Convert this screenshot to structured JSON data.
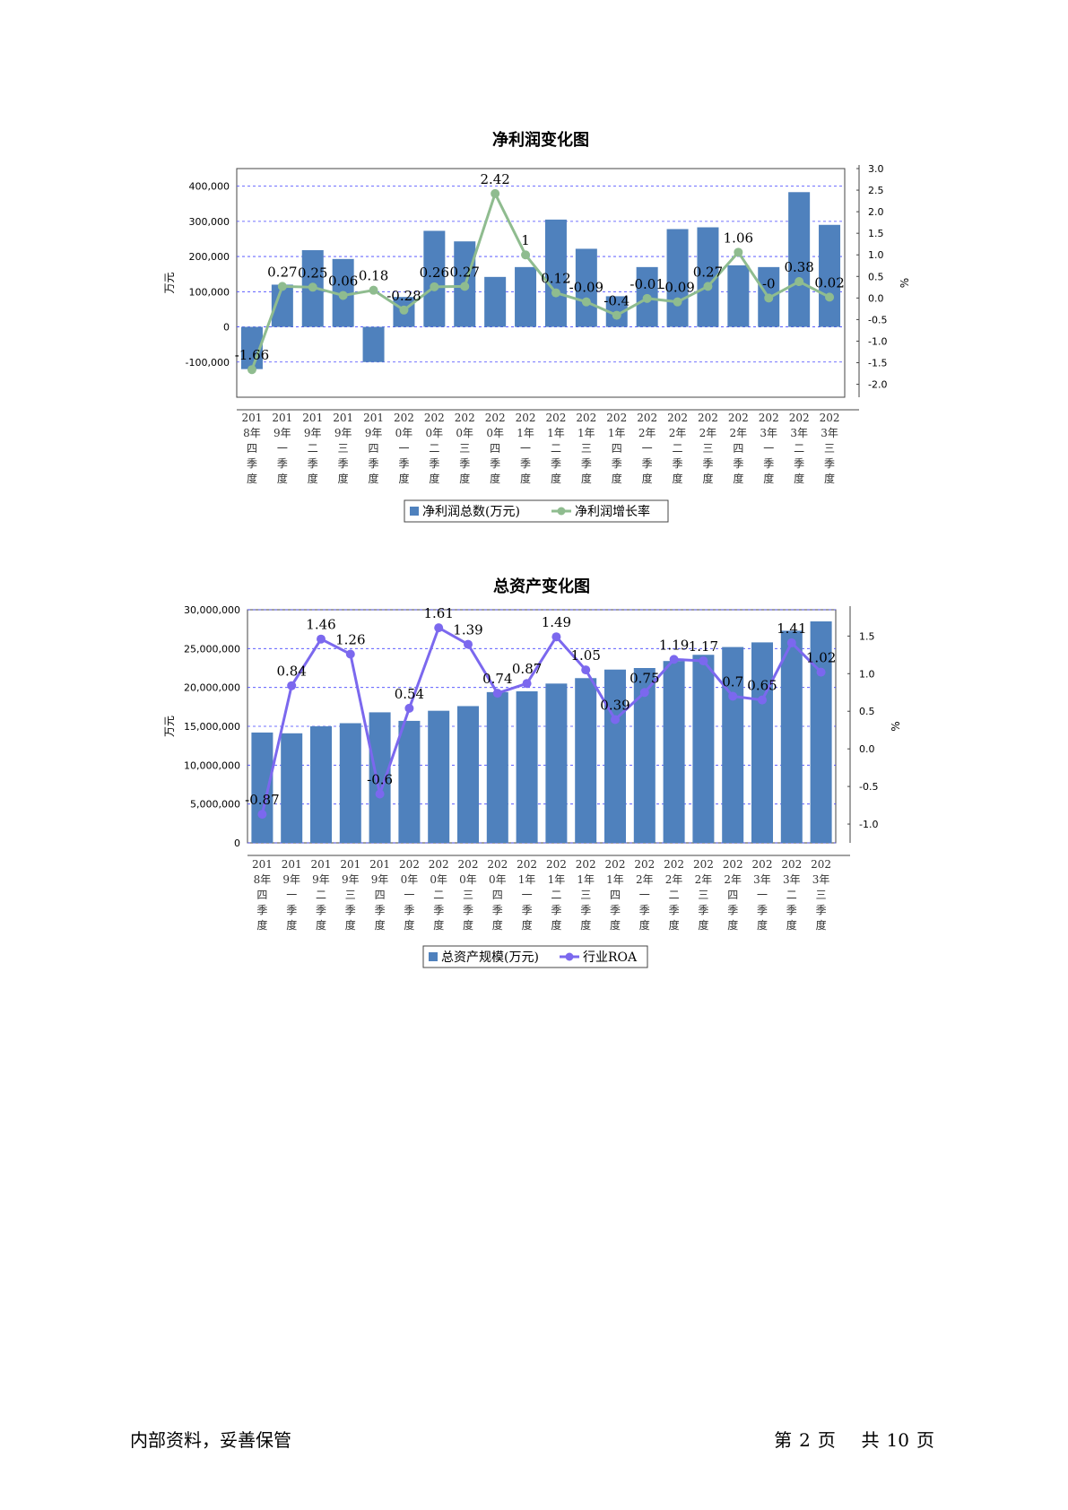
{
  "footer": {
    "left": "内部资料，妥善保管",
    "page_prefix": "第",
    "page": "2",
    "page_unit": "页",
    "total_prefix": "共",
    "total": "10",
    "total_unit": "页"
  },
  "colors": {
    "bar": "#4f81bd",
    "line1": "#8fbc8f",
    "line2": "#7b68ee",
    "grid": "#4444ff"
  },
  "chart_data": [
    {
      "type": "bar",
      "title": "净利润变化图",
      "ylabel": "万元",
      "y2label": "%",
      "categories": [
        "2018年四季度",
        "2019年一季度",
        "2019年二季度",
        "2019年三季度",
        "2019年四季度",
        "2020年一季度",
        "2020年二季度",
        "2020年三季度",
        "2020年四季度",
        "2021年一季度",
        "2021年二季度",
        "2021年三季度",
        "2021年四季度",
        "2022年一季度",
        "2022年二季度",
        "2022年三季度",
        "2022年四季度",
        "2023年一季度",
        "2023年二季度",
        "2023年三季度"
      ],
      "ylim": [
        -200000,
        450000
      ],
      "yticks": [
        -100000,
        0,
        100000,
        200000,
        300000,
        400000
      ],
      "ytick_labels": [
        "-100,000",
        "0",
        "100,000",
        "200,000",
        "300,000",
        "400,000"
      ],
      "y2lim": [
        -2.3,
        3.0
      ],
      "y2ticks": [
        -2.0,
        -1.5,
        -1.0,
        -0.5,
        0.0,
        0.5,
        1.0,
        1.5,
        2.0,
        2.5,
        3.0
      ],
      "y2tick_labels": [
        "-2.0",
        "-1.5",
        "-1.0",
        "-0.5",
        "0.0",
        "0.5",
        "1.0",
        "1.5",
        "2.0",
        "2.5",
        "3.0"
      ],
      "series": [
        {
          "name": "净利润总数(万元)",
          "type": "bar",
          "values": [
            -120000,
            120000,
            218000,
            193000,
            -100000,
            85000,
            273000,
            243000,
            142000,
            170000,
            305000,
            222000,
            87000,
            170000,
            278000,
            283000,
            175000,
            170000,
            383000,
            290000
          ]
        },
        {
          "name": "净利润增长率",
          "type": "line",
          "axis": "right",
          "values": [
            -1.66,
            0.27,
            0.25,
            0.06,
            0.18,
            -0.28,
            0.26,
            0.27,
            2.42,
            1,
            0.12,
            -0.09,
            -0.4,
            -0.01,
            -0.09,
            0.27,
            1.06,
            0,
            0.38,
            0.02
          ],
          "labels": [
            "-1.66",
            "0.27",
            "0.25",
            "0.06",
            "0.18",
            "-0.28",
            "0.26",
            "0.27",
            "2.42",
            "1",
            "0.12",
            "-0.09",
            "-0.4",
            "-0.01",
            "-0.09",
            "0.27",
            "1.06",
            "-0",
            "0.38",
            "0.02"
          ]
        }
      ]
    },
    {
      "type": "bar",
      "title": "总资产变化图",
      "ylabel": "万元",
      "y2label": "%",
      "categories": [
        "2018年四季度",
        "2019年一季度",
        "2019年二季度",
        "2019年三季度",
        "2019年四季度",
        "2020年一季度",
        "2020年二季度",
        "2020年三季度",
        "2020年四季度",
        "2021年一季度",
        "2021年二季度",
        "2021年三季度",
        "2021年四季度",
        "2022年一季度",
        "2022年二季度",
        "2022年三季度",
        "2022年四季度",
        "2023年一季度",
        "2023年二季度",
        "2023年三季度"
      ],
      "ylim": [
        0,
        30000000
      ],
      "yticks": [
        0,
        5000000,
        10000000,
        15000000,
        20000000,
        25000000,
        30000000
      ],
      "ytick_labels": [
        "0",
        "5,000,000",
        "10,000,000",
        "15,000,000",
        "20,000,000",
        "25,000,000",
        "30,000,000"
      ],
      "y2lim": [
        -1.25,
        1.85
      ],
      "y2ticks": [
        -1.0,
        -0.5,
        0.0,
        0.5,
        1.0,
        1.5
      ],
      "y2tick_labels": [
        "-1.0",
        "-0.5",
        "0.0",
        "0.5",
        "1.0",
        "1.5"
      ],
      "series": [
        {
          "name": "总资产规模(万元)",
          "type": "bar",
          "values": [
            14200000,
            14100000,
            15000000,
            15400000,
            16800000,
            15700000,
            17000000,
            17600000,
            19400000,
            19500000,
            20500000,
            21200000,
            22300000,
            22500000,
            23400000,
            24200000,
            25200000,
            25800000,
            27300000,
            28500000
          ]
        },
        {
          "name": "行业ROA",
          "type": "line",
          "axis": "right",
          "values": [
            -0.87,
            0.84,
            1.46,
            1.26,
            -0.6,
            0.54,
            1.61,
            1.39,
            0.74,
            0.87,
            1.49,
            1.05,
            0.39,
            0.75,
            1.19,
            1.17,
            0.7,
            0.65,
            1.41,
            1.02
          ],
          "labels": [
            "-0.87",
            "0.84",
            "1.46",
            "1.26",
            "-0.6",
            "0.54",
            "1.61",
            "1.39",
            "0.74",
            "0.87",
            "1.49",
            "1.05",
            "0.39",
            "0.75",
            "1.19",
            "1.17",
            "0.7",
            "0.65",
            "1.41",
            "1.02"
          ]
        }
      ]
    }
  ]
}
